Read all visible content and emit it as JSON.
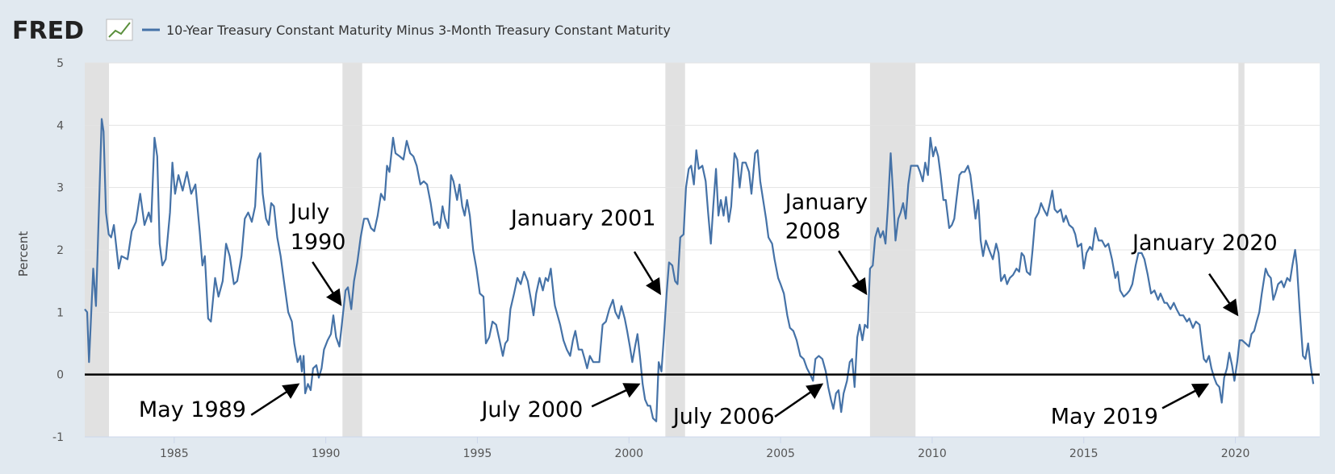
{
  "chart_data": {
    "type": "line",
    "logo": "FRED",
    "y_label": "Percent",
    "xlim": [
      1982.05,
      2022.78
    ],
    "ylim": [
      -1,
      5
    ],
    "xticks": [
      1985,
      1990,
      1995,
      2000,
      2005,
      2010,
      2015,
      2020
    ],
    "yticks": [
      -1,
      0,
      1,
      2,
      3,
      4,
      5
    ],
    "grid": true,
    "hline": 0,
    "recessions": [
      [
        1982.05,
        1982.85
      ],
      [
        1990.55,
        1991.2
      ],
      [
        2001.2,
        2001.85
      ],
      [
        2007.95,
        2009.45
      ],
      [
        2020.1,
        2020.3
      ]
    ],
    "annotations": [
      {
        "lines": [
          "July",
          "1990"
        ]
      },
      {
        "lines": [
          "January 2001"
        ]
      },
      {
        "lines": [
          "January",
          "2008"
        ]
      },
      {
        "lines": [
          "January 2020"
        ]
      },
      {
        "lines": [
          "May 1989"
        ]
      },
      {
        "lines": [
          "July 2000"
        ]
      },
      {
        "lines": [
          "July 2006"
        ]
      },
      {
        "lines": [
          "May 2019"
        ]
      }
    ],
    "x": [
      1982.05,
      1982.13,
      1982.19,
      1982.33,
      1982.42,
      1982.61,
      1982.67,
      1982.75,
      1982.84,
      1982.92,
      1983.01,
      1983.17,
      1983.26,
      1983.46,
      1983.6,
      1983.74,
      1983.88,
      1984.02,
      1984.16,
      1984.24,
      1984.35,
      1984.44,
      1984.52,
      1984.61,
      1984.72,
      1984.86,
      1984.94,
      1985.03,
      1985.14,
      1985.28,
      1985.42,
      1985.56,
      1985.7,
      1985.84,
      1985.93,
      1986.01,
      1986.12,
      1986.21,
      1986.35,
      1986.46,
      1986.6,
      1986.71,
      1986.83,
      1986.97,
      1987.08,
      1987.22,
      1987.33,
      1987.44,
      1987.56,
      1987.67,
      1987.75,
      1987.84,
      1987.92,
      1988.03,
      1988.12,
      1988.2,
      1988.29,
      1988.4,
      1988.51,
      1988.62,
      1988.76,
      1988.88,
      1988.96,
      1989.07,
      1989.16,
      1989.21,
      1989.27,
      1989.32,
      1989.41,
      1989.5,
      1989.58,
      1989.69,
      1989.77,
      1989.86,
      1989.94,
      1990.06,
      1990.17,
      1990.25,
      1990.34,
      1990.45,
      1990.53,
      1990.65,
      1990.73,
      1990.84,
      1990.93,
      1991.04,
      1991.15,
      1991.26,
      1991.38,
      1991.49,
      1991.6,
      1991.71,
      1991.82,
      1991.94,
      1992.02,
      1992.1,
      1992.22,
      1992.3,
      1992.44,
      1992.56,
      1992.67,
      1992.78,
      1992.89,
      1993.0,
      1993.12,
      1993.23,
      1993.34,
      1993.46,
      1993.57,
      1993.68,
      1993.76,
      1993.85,
      1993.93,
      1994.04,
      1994.13,
      1994.21,
      1994.33,
      1994.41,
      1994.5,
      1994.58,
      1994.66,
      1994.75,
      1994.86,
      1994.97,
      1995.08,
      1995.2,
      1995.28,
      1995.39,
      1995.5,
      1995.62,
      1995.73,
      1995.84,
      1995.92,
      1996.0,
      1996.09,
      1996.21,
      1996.32,
      1996.43,
      1996.54,
      1996.66,
      1996.77,
      1996.85,
      1996.94,
      1997.05,
      1997.16,
      1997.25,
      1997.33,
      1997.42,
      1997.53,
      1997.56,
      1997.73,
      1997.84,
      1997.95,
      1998.06,
      1998.15,
      1998.23,
      1998.34,
      1998.45,
      1998.54,
      1998.62,
      1998.71,
      1998.82,
      1998.9,
      1999.02,
      1999.13,
      1999.24,
      1999.35,
      1999.47,
      1999.55,
      1999.66,
      1999.75,
      1999.86,
      1999.94,
      2000.03,
      2000.11,
      2000.2,
      2000.28,
      2000.37,
      2000.45,
      2000.53,
      2000.62,
      2000.7,
      2000.79,
      2000.9,
      2000.98,
      2001.07,
      2001.15,
      2001.24,
      2001.32,
      2001.43,
      2001.52,
      2001.6,
      2001.69,
      2001.8,
      2001.88,
      2001.97,
      2002.05,
      2002.14,
      2002.22,
      2002.3,
      2002.42,
      2002.53,
      2002.61,
      2002.7,
      2002.78,
      2002.87,
      2002.95,
      2003.03,
      2003.12,
      2003.2,
      2003.29,
      2003.37,
      2003.48,
      2003.57,
      2003.65,
      2003.74,
      2003.85,
      2003.96,
      2004.04,
      2004.16,
      2004.24,
      2004.33,
      2004.41,
      2004.52,
      2004.6,
      2004.72,
      2004.8,
      2004.92,
      2005.0,
      2005.11,
      2005.22,
      2005.31,
      2005.42,
      2005.53,
      2005.65,
      2005.76,
      2005.87,
      2005.98,
      2006.07,
      2006.15,
      2006.26,
      2006.38,
      2006.49,
      2006.57,
      2006.66,
      2006.74,
      2006.83,
      2006.91,
      2007.0,
      2007.08,
      2007.19,
      2007.28,
      2007.36,
      2007.44,
      2007.53,
      2007.61,
      2007.7,
      2007.78,
      2007.87,
      2007.95,
      2008.04,
      2008.12,
      2008.21,
      2008.29,
      2008.38,
      2008.46,
      2008.54,
      2008.63,
      2008.71,
      2008.79,
      2008.88,
      2008.96,
      2009.04,
      2009.13,
      2009.21,
      2009.3,
      2009.41,
      2009.52,
      2009.6,
      2009.69,
      2009.77,
      2009.86,
      2009.94,
      2010.03,
      2010.11,
      2010.2,
      2010.28,
      2010.37,
      2010.45,
      2010.56,
      2010.65,
      2010.73,
      2010.81,
      2010.9,
      2010.98,
      2011.07,
      2011.18,
      2011.26,
      2011.35,
      2011.43,
      2011.52,
      2011.6,
      2011.68,
      2011.77,
      2011.88,
      2012.0,
      2012.11,
      2012.19,
      2012.27,
      2012.39,
      2012.47,
      2012.56,
      2012.67,
      2012.78,
      2012.87,
      2012.95,
      2013.03,
      2013.12,
      2013.23,
      2013.31,
      2013.4,
      2013.51,
      2013.59,
      2013.68,
      2013.79,
      2013.88,
      2013.96,
      2014.04,
      2014.13,
      2014.24,
      2014.33,
      2014.41,
      2014.52,
      2014.64,
      2014.72,
      2014.8,
      2014.92,
      2015.0,
      2015.09,
      2015.2,
      2015.28,
      2015.38,
      2015.49,
      2015.6,
      2015.71,
      2015.81,
      2015.93,
      2016.04,
      2016.12,
      2016.2,
      2016.32,
      2016.43,
      2016.51,
      2016.6,
      2016.71,
      2016.8,
      2016.91,
      2017.0,
      2017.11,
      2017.22,
      2017.33,
      2017.45,
      2017.53,
      2017.66,
      2017.74,
      2017.86,
      2017.97,
      2018.06,
      2018.17,
      2018.28,
      2018.4,
      2018.48,
      2018.6,
      2018.7,
      2018.82,
      2018.88,
      2018.96,
      2019.04,
      2019.13,
      2019.21,
      2019.3,
      2019.38,
      2019.47,
      2019.55,
      2019.63,
      2019.72,
      2019.8,
      2019.89,
      2019.97,
      2020.06,
      2020.14,
      2020.22,
      2020.34,
      2020.45,
      2020.53,
      2020.62,
      2020.7,
      2020.79,
      2020.87,
      2021.0,
      2021.08,
      2021.17,
      2021.25,
      2021.32,
      2021.41,
      2021.52,
      2021.6,
      2021.71,
      2021.8,
      2021.88,
      2021.97,
      2022.03,
      2022.12,
      2022.23,
      2022.31,
      2022.4,
      2022.48,
      2022.57
    ],
    "series": [
      {
        "name": "10-Year Treasury Constant Maturity Minus 3-Month Treasury Constant Maturity",
        "color": "#4572a7",
        "values": [
          1.05,
          1.0,
          0.2,
          1.7,
          1.1,
          4.1,
          3.9,
          2.6,
          2.25,
          2.2,
          2.4,
          1.7,
          1.9,
          1.85,
          2.3,
          2.45,
          2.9,
          2.4,
          2.6,
          2.45,
          3.8,
          3.5,
          2.1,
          1.75,
          1.85,
          2.6,
          3.4,
          2.9,
          3.2,
          2.95,
          3.25,
          2.9,
          3.05,
          2.3,
          1.75,
          1.9,
          0.9,
          0.85,
          1.55,
          1.25,
          1.5,
          2.1,
          1.9,
          1.45,
          1.5,
          1.9,
          2.5,
          2.6,
          2.45,
          2.7,
          3.45,
          3.55,
          2.9,
          2.5,
          2.4,
          2.75,
          2.7,
          2.2,
          1.9,
          1.5,
          1.0,
          0.85,
          0.5,
          0.2,
          0.3,
          0.05,
          0.3,
          -0.3,
          -0.15,
          -0.25,
          0.1,
          0.15,
          -0.05,
          0.1,
          0.4,
          0.55,
          0.65,
          0.95,
          0.6,
          0.45,
          0.8,
          1.35,
          1.4,
          1.05,
          1.5,
          1.8,
          2.2,
          2.5,
          2.5,
          2.35,
          2.3,
          2.55,
          2.9,
          2.8,
          3.35,
          3.25,
          3.8,
          3.55,
          3.5,
          3.45,
          3.75,
          3.55,
          3.5,
          3.35,
          3.05,
          3.1,
          3.05,
          2.75,
          2.4,
          2.45,
          2.35,
          2.7,
          2.5,
          2.35,
          3.2,
          3.1,
          2.8,
          3.05,
          2.7,
          2.55,
          2.8,
          2.55,
          2.0,
          1.7,
          1.3,
          1.25,
          0.5,
          0.6,
          0.85,
          0.8,
          0.55,
          0.3,
          0.5,
          0.55,
          1.05,
          1.3,
          1.55,
          1.45,
          1.65,
          1.5,
          1.2,
          0.95,
          1.3,
          1.55,
          1.35,
          1.55,
          1.5,
          1.7,
          1.2,
          1.1,
          0.8,
          0.55,
          0.4,
          0.3,
          0.55,
          0.7,
          0.4,
          0.4,
          0.25,
          0.1,
          0.3,
          0.2,
          0.2,
          0.2,
          0.8,
          0.85,
          1.05,
          1.2,
          1.0,
          0.9,
          1.1,
          0.9,
          0.7,
          0.45,
          0.2,
          0.45,
          0.65,
          0.25,
          -0.15,
          -0.4,
          -0.5,
          -0.5,
          -0.7,
          -0.75,
          0.2,
          0.05,
          0.6,
          1.3,
          1.8,
          1.75,
          1.5,
          1.45,
          2.2,
          2.25,
          3.0,
          3.3,
          3.35,
          3.05,
          3.6,
          3.3,
          3.35,
          3.1,
          2.6,
          2.1,
          2.7,
          3.3,
          2.55,
          2.8,
          2.55,
          2.85,
          2.45,
          2.7,
          3.55,
          3.45,
          3.0,
          3.4,
          3.4,
          3.25,
          2.9,
          3.55,
          3.6,
          3.1,
          2.85,
          2.5,
          2.2,
          2.1,
          1.85,
          1.55,
          1.45,
          1.3,
          0.95,
          0.75,
          0.7,
          0.55,
          0.3,
          0.25,
          0.1,
          0.0,
          -0.1,
          0.25,
          0.3,
          0.25,
          0.05,
          -0.2,
          -0.4,
          -0.55,
          -0.3,
          -0.25,
          -0.6,
          -0.3,
          -0.1,
          0.2,
          0.25,
          -0.2,
          0.6,
          0.8,
          0.55,
          0.8,
          0.75,
          1.7,
          1.75,
          2.2,
          2.35,
          2.2,
          2.3,
          2.1,
          2.7,
          3.55,
          2.9,
          2.15,
          2.5,
          2.6,
          2.75,
          2.5,
          3.05,
          3.35,
          3.35,
          3.35,
          3.25,
          3.1,
          3.4,
          3.2,
          3.8,
          3.5,
          3.65,
          3.5,
          3.2,
          2.8,
          2.8,
          2.35,
          2.4,
          2.5,
          2.85,
          3.2,
          3.25,
          3.25,
          3.35,
          3.2,
          2.85,
          2.5,
          2.8,
          2.15,
          1.9,
          2.15,
          2.0,
          1.85,
          2.1,
          1.95,
          1.5,
          1.6,
          1.45,
          1.55,
          1.6,
          1.7,
          1.65,
          1.95,
          1.9,
          1.65,
          1.6,
          2.0,
          2.5,
          2.6,
          2.75,
          2.65,
          2.55,
          2.75,
          2.95,
          2.65,
          2.6,
          2.65,
          2.45,
          2.55,
          2.4,
          2.35,
          2.25,
          2.05,
          2.1,
          1.7,
          1.95,
          2.05,
          2.0,
          2.35,
          2.15,
          2.15,
          2.05,
          2.1,
          1.85,
          1.55,
          1.65,
          1.35,
          1.25,
          1.3,
          1.35,
          1.45,
          1.75,
          1.95,
          1.95,
          1.85,
          1.6,
          1.3,
          1.35,
          1.2,
          1.3,
          1.15,
          1.15,
          1.05,
          1.15,
          1.05,
          0.95,
          0.95,
          0.85,
          0.9,
          0.75,
          0.85,
          0.8,
          0.55,
          0.25,
          0.2,
          0.3,
          0.1,
          -0.05,
          -0.15,
          -0.2,
          -0.45,
          -0.05,
          0.1,
          0.35,
          0.15,
          -0.1,
          0.2,
          0.55,
          0.55,
          0.5,
          0.45,
          0.65,
          0.7,
          0.85,
          1.0,
          1.3,
          1.7,
          1.6,
          1.55,
          1.2,
          1.3,
          1.45,
          1.5,
          1.4,
          1.55,
          1.5,
          1.75,
          2.0,
          1.75,
          1.05,
          0.3,
          0.25,
          0.5,
          0.15,
          -0.15
        ]
      }
    ]
  }
}
